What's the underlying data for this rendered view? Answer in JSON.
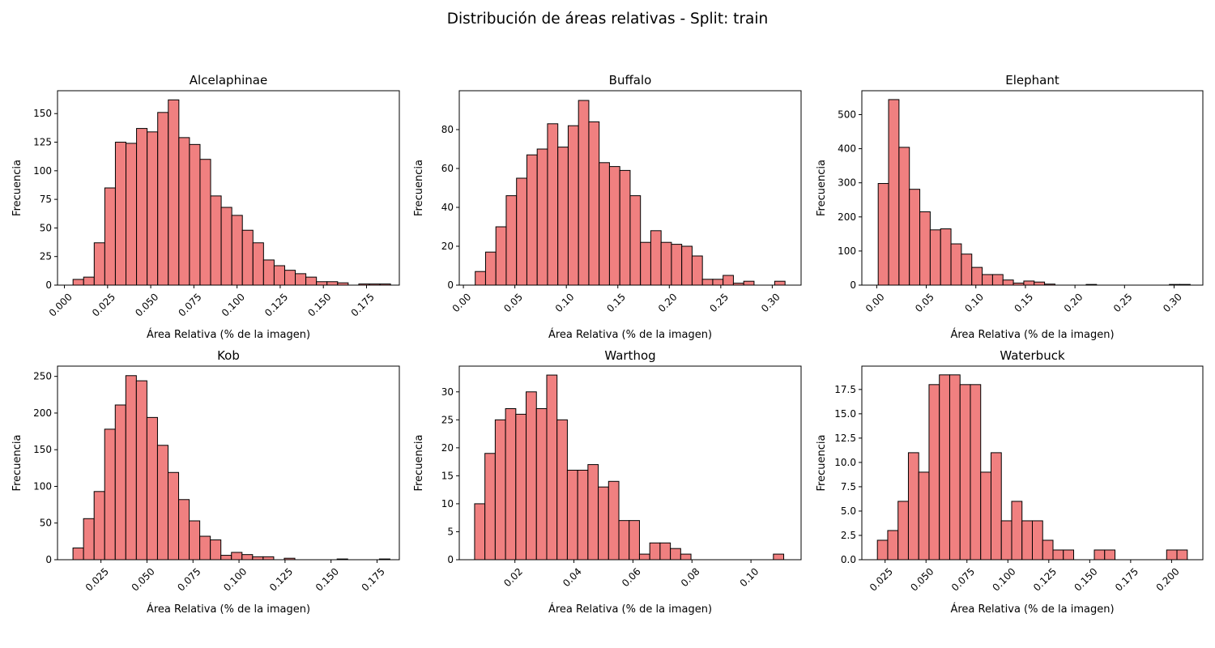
{
  "figure": {
    "title": "Distribución de áreas relativas - Split: train"
  },
  "style": {
    "bar_fill": "#f08080",
    "bar_edge": "#000000"
  },
  "chart_data": [
    {
      "type": "histogram",
      "title": "Alcelaphinae",
      "xlabel": "Área Relativa (% de la imagen)",
      "ylabel": "Frecuencia",
      "xlim": [
        -0.004,
        0.194
      ],
      "ylim": [
        0,
        170
      ],
      "xticks": [
        0.0,
        0.025,
        0.05,
        0.075,
        0.1,
        0.125,
        0.15,
        0.175
      ],
      "xtick_labels": [
        "0.000",
        "0.025",
        "0.050",
        "0.075",
        "0.100",
        "0.125",
        "0.150",
        "0.175"
      ],
      "xtick_rotation": 45,
      "yticks": [
        0,
        25,
        50,
        75,
        100,
        125,
        150
      ],
      "ytick_labels": [
        "0",
        "25",
        "50",
        "75",
        "100",
        "125",
        "150"
      ],
      "bin_start": 0.005,
      "bin_width": 0.00613,
      "values": [
        5,
        7,
        37,
        85,
        125,
        124,
        137,
        134,
        151,
        162,
        129,
        123,
        110,
        78,
        68,
        61,
        48,
        37,
        22,
        17,
        13,
        10,
        7,
        3,
        3,
        2,
        0,
        1,
        1,
        1
      ]
    },
    {
      "type": "histogram",
      "title": "Buffalo",
      "xlabel": "Área Relativa (% de la imagen)",
      "ylabel": "Frecuencia",
      "xlim": [
        -0.004,
        0.328
      ],
      "ylim": [
        0,
        100
      ],
      "xticks": [
        0.0,
        0.05,
        0.1,
        0.15,
        0.2,
        0.25,
        0.3
      ],
      "xtick_labels": [
        "0.00",
        "0.05",
        "0.10",
        "0.15",
        "0.20",
        "0.25",
        "0.30"
      ],
      "xtick_rotation": 45,
      "yticks": [
        0,
        20,
        40,
        60,
        80
      ],
      "ytick_labels": [
        "0",
        "20",
        "40",
        "60",
        "80"
      ],
      "bin_start": 0.0115,
      "bin_width": 0.01003,
      "values": [
        7,
        17,
        30,
        46,
        55,
        67,
        70,
        83,
        71,
        82,
        95,
        84,
        63,
        61,
        59,
        46,
        22,
        28,
        22,
        21,
        20,
        15,
        3,
        3,
        5,
        1,
        2,
        0,
        0,
        2
      ]
    },
    {
      "type": "histogram",
      "title": "Elephant",
      "xlabel": "Área Relativa (% de la imagen)",
      "ylabel": "Frecuencia",
      "xlim": [
        -0.015,
        0.329
      ],
      "ylim": [
        0,
        570
      ],
      "xticks": [
        0.0,
        0.05,
        0.1,
        0.15,
        0.2,
        0.25,
        0.3
      ],
      "xtick_labels": [
        "0.00",
        "0.05",
        "0.10",
        "0.15",
        "0.20",
        "0.25",
        "0.30"
      ],
      "xtick_rotation": 45,
      "yticks": [
        0,
        100,
        200,
        300,
        400,
        500
      ],
      "ytick_labels": [
        "0",
        "100",
        "200",
        "300",
        "400",
        "500"
      ],
      "bin_start": 0.0015,
      "bin_width": 0.01049,
      "values": [
        298,
        544,
        404,
        281,
        215,
        162,
        165,
        121,
        91,
        52,
        31,
        31,
        15,
        6,
        12,
        9,
        3,
        0,
        0,
        0,
        2,
        0,
        0,
        0,
        0,
        0,
        0,
        0,
        2,
        2
      ]
    },
    {
      "type": "histogram",
      "title": "Kob",
      "xlabel": "Área Relativa (% de la imagen)",
      "ylabel": "Frecuencia",
      "xlim": [
        0.0014,
        0.1871
      ],
      "ylim": [
        0,
        264
      ],
      "xticks": [
        0.025,
        0.05,
        0.075,
        0.1,
        0.125,
        0.15,
        0.175
      ],
      "xtick_labels": [
        "0.025",
        "0.050",
        "0.075",
        "0.100",
        "0.125",
        "0.150",
        "0.175"
      ],
      "xtick_rotation": 45,
      "yticks": [
        0,
        50,
        100,
        150,
        200,
        250
      ],
      "ytick_labels": [
        "0",
        "50",
        "100",
        "150",
        "200",
        "250"
      ],
      "bin_start": 0.0098,
      "bin_width": 0.00574,
      "values": [
        16,
        56,
        93,
        178,
        211,
        251,
        244,
        194,
        156,
        119,
        82,
        53,
        32,
        27,
        6,
        10,
        7,
        4,
        4,
        0,
        2,
        0,
        0,
        0,
        0,
        1,
        0,
        0,
        0,
        1
      ]
    },
    {
      "type": "histogram",
      "title": "Warthog",
      "xlabel": "Área Relativa (% de la imagen)",
      "ylabel": "Frecuencia",
      "xlim": [
        0.00114,
        0.11699
      ],
      "ylim": [
        0,
        34.6
      ],
      "xticks": [
        0.02,
        0.04,
        0.06,
        0.08,
        0.1
      ],
      "xtick_labels": [
        "0.02",
        "0.04",
        "0.06",
        "0.08",
        "0.10"
      ],
      "xtick_rotation": 45,
      "yticks": [
        0,
        5,
        10,
        15,
        20,
        25,
        30
      ],
      "ytick_labels": [
        "0",
        "5",
        "10",
        "15",
        "20",
        "25",
        "30"
      ],
      "bin_start": 0.00634,
      "bin_width": 0.003492,
      "values": [
        10,
        19,
        25,
        27,
        26,
        30,
        27,
        33,
        25,
        16,
        16,
        17,
        13,
        14,
        7,
        7,
        1,
        3,
        3,
        2,
        1,
        0,
        0,
        0,
        0,
        0,
        0,
        0,
        0,
        1
      ]
    },
    {
      "type": "histogram",
      "title": "Waterbuck",
      "xlabel": "Área Relativa (% de la imagen)",
      "ylabel": "Frecuencia",
      "xlim": [
        0.0108,
        0.2191
      ],
      "ylim": [
        0,
        19.9
      ],
      "xticks": [
        0.025,
        0.05,
        0.075,
        0.1,
        0.125,
        0.15,
        0.175,
        0.2
      ],
      "xtick_labels": [
        "0.025",
        "0.050",
        "0.075",
        "0.100",
        "0.125",
        "0.150",
        "0.175",
        "0.200"
      ],
      "xtick_rotation": 45,
      "yticks": [
        0.0,
        2.5,
        5.0,
        7.5,
        10.0,
        12.5,
        15.0,
        17.5
      ],
      "ytick_labels": [
        "0.0",
        "2.5",
        "5.0",
        "7.5",
        "10.0",
        "12.5",
        "15.0",
        "17.5"
      ],
      "bin_start": 0.0203,
      "bin_width": 0.00631,
      "values": [
        2,
        3,
        6,
        11,
        9,
        18,
        19,
        19,
        18,
        18,
        9,
        11,
        4,
        6,
        4,
        4,
        2,
        1,
        1,
        0,
        0,
        1,
        1,
        0,
        0,
        0,
        0,
        0,
        1,
        1
      ]
    }
  ]
}
